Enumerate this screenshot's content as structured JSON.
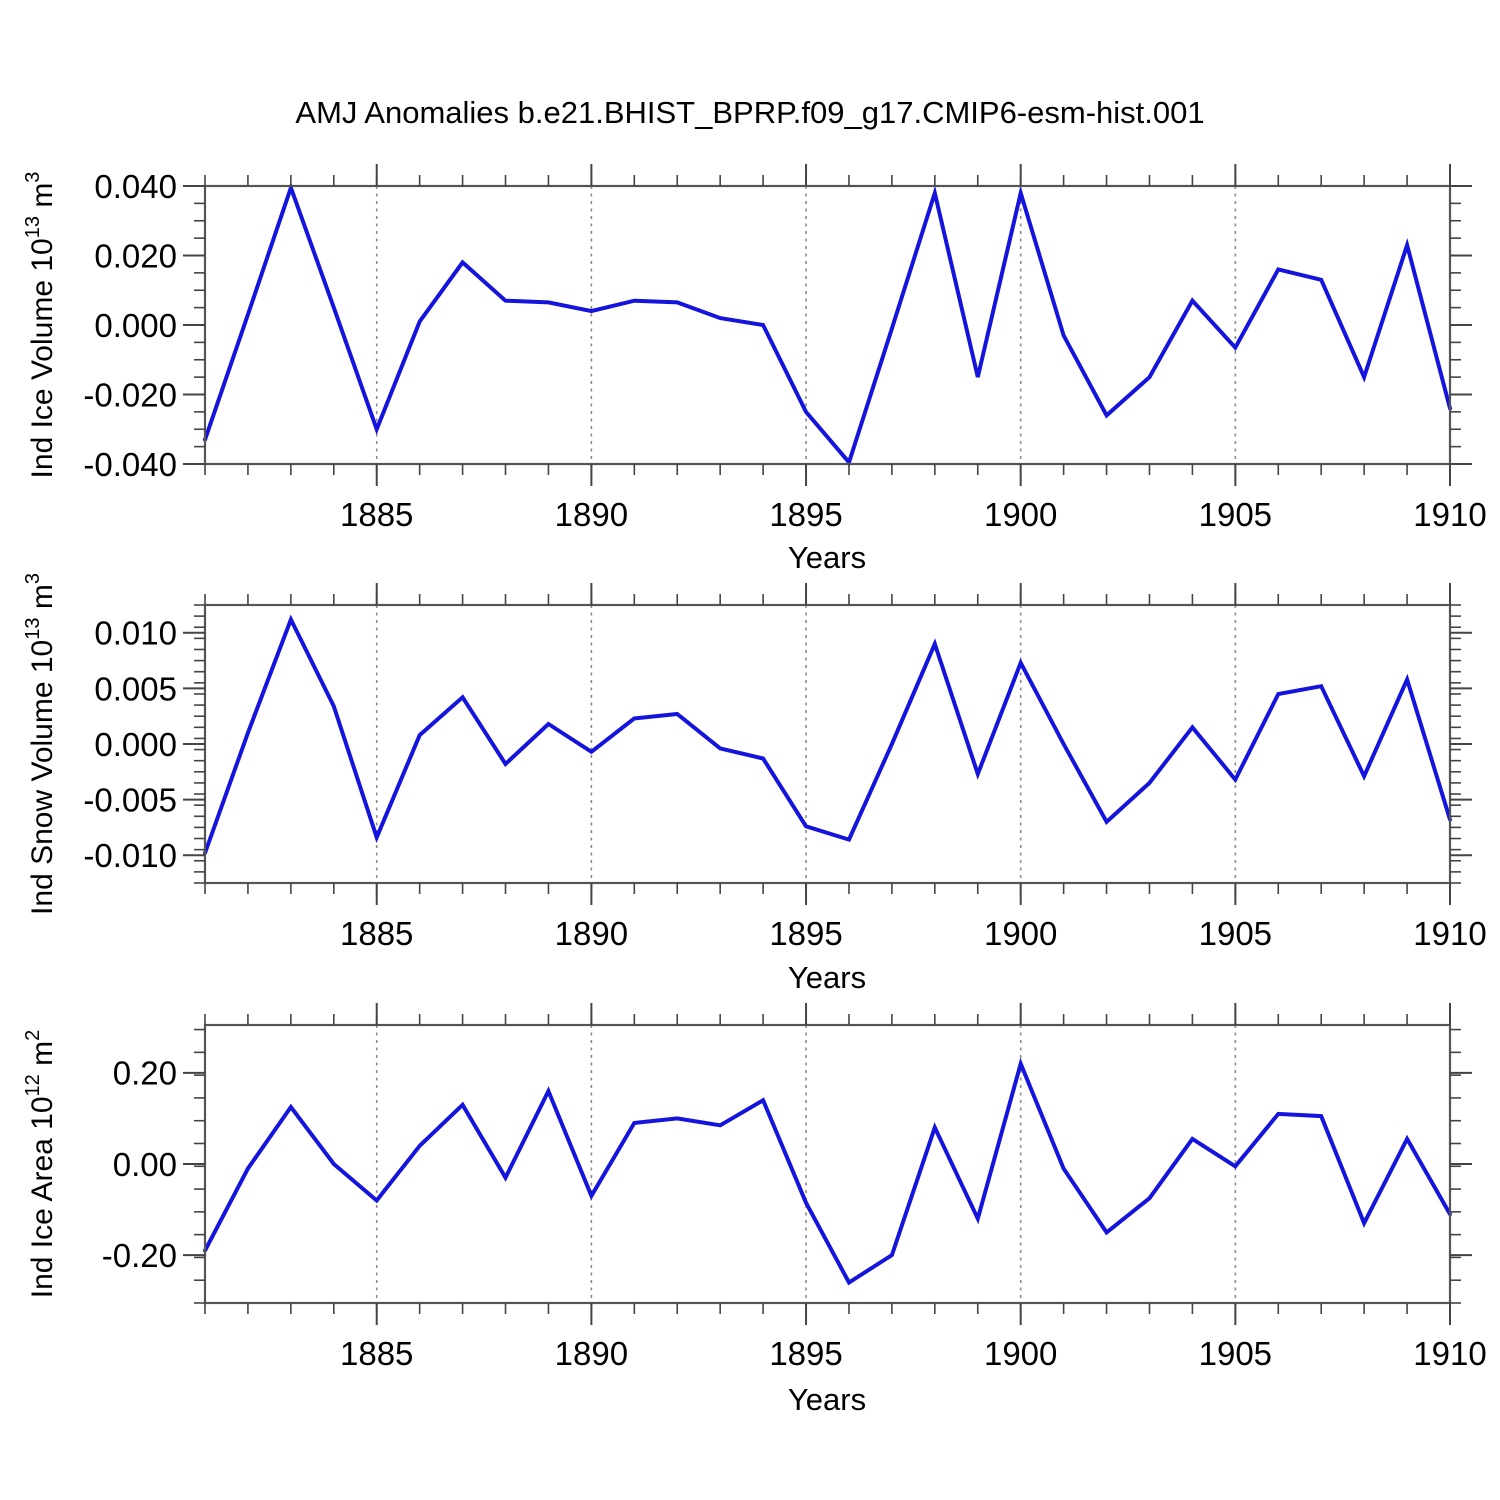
{
  "title": "AMJ Anomalies b.e21.BHIST_BPRP.f09_g17.CMIP6-esm-hist.001",
  "xlabel": "Years",
  "colors": {
    "line": "#1414dc",
    "frame": "#555555",
    "tick": "#444444",
    "grid": "#8c8c8c",
    "text": "#000000",
    "background": "#ffffff"
  },
  "chart_data": [
    {
      "type": "line",
      "name": "ind-ice-volume-anomaly",
      "ylabel": "Ind Ice Volume 10^13 m^3",
      "ylabel_parts": {
        "pre": "Ind Ice Volume 10",
        "exp": "13",
        "mid": " m",
        "exp2": "3"
      },
      "xlabel": "Years",
      "x": [
        1881,
        1882,
        1883,
        1884,
        1885,
        1886,
        1887,
        1888,
        1889,
        1890,
        1891,
        1892,
        1893,
        1894,
        1895,
        1896,
        1897,
        1898,
        1899,
        1900,
        1901,
        1902,
        1903,
        1904,
        1905,
        1906,
        1907,
        1908,
        1909,
        1910
      ],
      "values": [
        -0.033,
        0.003,
        0.0395,
        0.005,
        -0.03,
        0.001,
        0.018,
        0.007,
        0.0065,
        0.004,
        0.007,
        0.0065,
        0.002,
        0.0,
        -0.025,
        -0.0395,
        -0.001,
        0.038,
        -0.015,
        0.038,
        -0.003,
        -0.026,
        -0.015,
        0.007,
        -0.0065,
        0.016,
        0.013,
        -0.015,
        0.023,
        -0.024
      ],
      "xlim": [
        1881,
        1910
      ],
      "ylim": [
        -0.04,
        0.04
      ],
      "yticks": [
        {
          "v": 0.04,
          "label": "0.040"
        },
        {
          "v": 0.02,
          "label": "0.020"
        },
        {
          "v": 0.0,
          "label": "0.000"
        },
        {
          "v": -0.02,
          "label": "-0.020"
        },
        {
          "v": -0.04,
          "label": "-0.040"
        }
      ],
      "yminor_step": 0.005,
      "xticks": [
        1885,
        1890,
        1895,
        1900,
        1905,
        1910
      ],
      "xminor_step": 1,
      "grid_years": [
        1885,
        1890,
        1895,
        1900,
        1905
      ],
      "grid": "vertical-dashed",
      "legend": "none"
    },
    {
      "type": "line",
      "name": "ind-snow-volume-anomaly",
      "ylabel": "Ind Snow Volume 10^13 m^3",
      "ylabel_parts": {
        "pre": "Ind Snow Volume 10",
        "exp": "13",
        "mid": " m",
        "exp2": "3"
      },
      "xlabel": "Years",
      "x": [
        1881,
        1882,
        1883,
        1884,
        1885,
        1886,
        1887,
        1888,
        1889,
        1890,
        1891,
        1892,
        1893,
        1894,
        1895,
        1896,
        1897,
        1898,
        1899,
        1900,
        1901,
        1902,
        1903,
        1904,
        1905,
        1906,
        1907,
        1908,
        1909,
        1910
      ],
      "values": [
        -0.0098,
        0.001,
        0.0112,
        0.0034,
        -0.0084,
        0.0008,
        0.0042,
        -0.0018,
        0.0018,
        -0.0007,
        0.0023,
        0.0027,
        -0.0004,
        -0.0013,
        -0.0074,
        -0.0086,
        0.0,
        0.009,
        -0.0027,
        0.0073,
        0.0,
        -0.007,
        -0.0035,
        0.0015,
        -0.0032,
        0.0045,
        0.0052,
        -0.0029,
        0.0058,
        -0.0068
      ],
      "xlim": [
        1881,
        1910
      ],
      "ylim": [
        -0.0125,
        0.0125
      ],
      "yticks": [
        {
          "v": 0.01,
          "label": "0.010"
        },
        {
          "v": 0.005,
          "label": "0.005"
        },
        {
          "v": 0.0,
          "label": "0.000"
        },
        {
          "v": -0.005,
          "label": "-0.005"
        },
        {
          "v": -0.01,
          "label": "-0.010"
        }
      ],
      "yminor_step": 0.001,
      "xticks": [
        1885,
        1890,
        1895,
        1900,
        1905,
        1910
      ],
      "xminor_step": 1,
      "grid_years": [
        1885,
        1890,
        1895,
        1900,
        1905
      ],
      "grid": "vertical-dashed",
      "legend": "none"
    },
    {
      "type": "line",
      "name": "ind-ice-area-anomaly",
      "ylabel": "Ind Ice Area 10^12 m^2",
      "ylabel_parts": {
        "pre": "Ind Ice Area 10",
        "exp": "12",
        "mid": " m",
        "exp2": "2"
      },
      "xlabel": "Years",
      "x": [
        1881,
        1882,
        1883,
        1884,
        1885,
        1886,
        1887,
        1888,
        1889,
        1890,
        1891,
        1892,
        1893,
        1894,
        1895,
        1896,
        1897,
        1898,
        1899,
        1900,
        1901,
        1902,
        1903,
        1904,
        1905,
        1906,
        1907,
        1908,
        1909,
        1910
      ],
      "values": [
        -0.19,
        -0.01,
        0.125,
        0.0,
        -0.08,
        0.04,
        0.13,
        -0.03,
        0.16,
        -0.07,
        0.09,
        0.1,
        0.085,
        0.14,
        -0.085,
        -0.26,
        -0.2,
        0.08,
        -0.12,
        0.22,
        -0.01,
        -0.15,
        -0.075,
        0.055,
        -0.005,
        0.11,
        0.105,
        -0.13,
        0.055,
        -0.11
      ],
      "xlim": [
        1881,
        1910
      ],
      "ylim": [
        -0.305,
        0.305
      ],
      "yticks": [
        {
          "v": 0.2,
          "label": "0.20"
        },
        {
          "v": 0.0,
          "label": "0.00"
        },
        {
          "v": -0.2,
          "label": "-0.20"
        }
      ],
      "yminor_step": 0.05,
      "xticks": [
        1885,
        1890,
        1895,
        1900,
        1905,
        1910
      ],
      "xminor_step": 1,
      "grid_years": [
        1885,
        1890,
        1895,
        1900,
        1905
      ],
      "grid": "vertical-dashed",
      "legend": "none"
    }
  ]
}
